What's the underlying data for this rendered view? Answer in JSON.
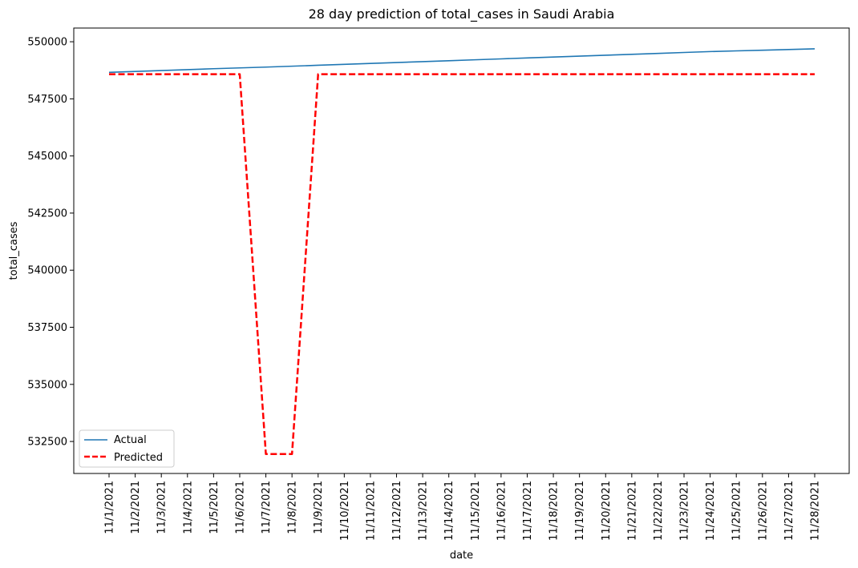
{
  "chart_data": {
    "type": "line",
    "title": "28 day prediction of total_cases in Saudi Arabia",
    "xlabel": "date",
    "ylabel": "total_cases",
    "x": [
      "11/1/2021",
      "11/2/2021",
      "11/3/2021",
      "11/4/2021",
      "11/5/2021",
      "11/6/2021",
      "11/7/2021",
      "11/8/2021",
      "11/9/2021",
      "11/10/2021",
      "11/11/2021",
      "11/12/2021",
      "11/13/2021",
      "11/14/2021",
      "11/15/2021",
      "11/16/2021",
      "11/17/2021",
      "11/18/2021",
      "11/19/2021",
      "11/20/2021",
      "11/21/2021",
      "11/22/2021",
      "11/23/2021",
      "11/24/2021",
      "11/25/2021",
      "11/26/2021",
      "11/27/2021",
      "11/28/2021"
    ],
    "ylim": [
      531100,
      550600
    ],
    "yticks": [
      532500,
      535000,
      537500,
      540000,
      542500,
      545000,
      547500,
      550000
    ],
    "legend": "lower-left",
    "grid": false,
    "series": [
      {
        "name": "Actual",
        "color": "#1f77b4",
        "style": "solid",
        "values": [
          548660,
          548700,
          548740,
          548780,
          548820,
          548855,
          548890,
          548930,
          548970,
          549010,
          549050,
          549090,
          549130,
          549170,
          549210,
          549250,
          549290,
          549330,
          549370,
          549410,
          549450,
          549490,
          549530,
          549570,
          549600,
          549630,
          549660,
          549690
        ]
      },
      {
        "name": "Predicted",
        "color": "#ff0000",
        "style": "dashed",
        "values": [
          548580,
          548580,
          548580,
          548580,
          548580,
          548580,
          531950,
          531950,
          548580,
          548580,
          548580,
          548580,
          548580,
          548580,
          548580,
          548580,
          548580,
          548580,
          548580,
          548580,
          548580,
          548580,
          548580,
          548580,
          548580,
          548580,
          548580,
          548580
        ]
      }
    ]
  }
}
